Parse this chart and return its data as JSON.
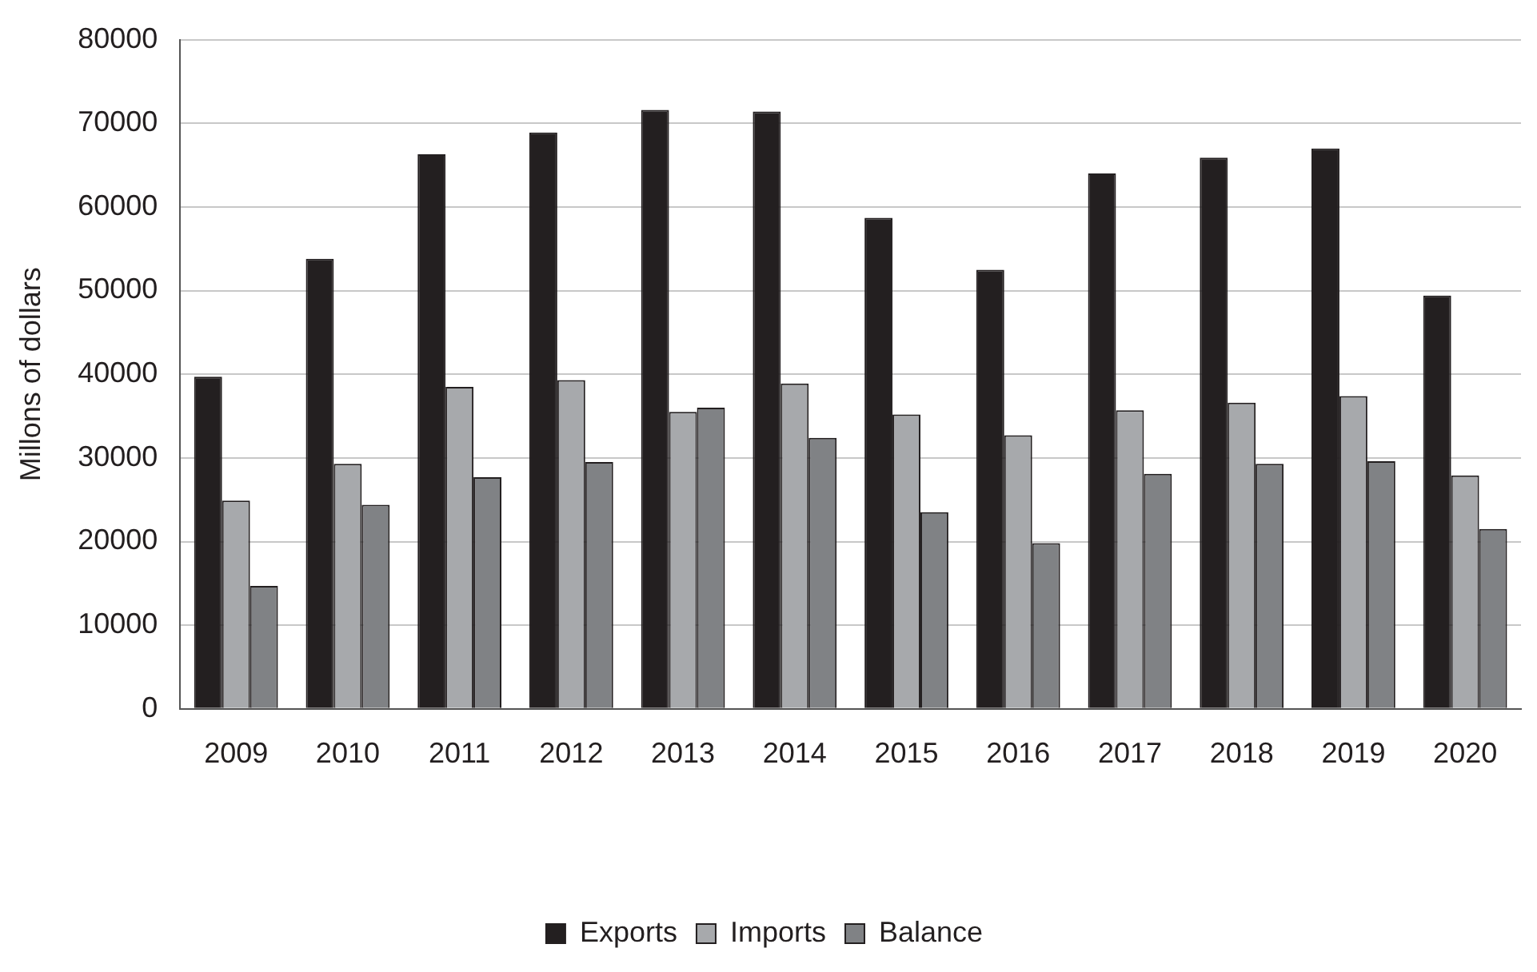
{
  "chart_data": {
    "type": "bar",
    "ylabel": "Millons of dollars",
    "categories": [
      "2009",
      "2010",
      "2011",
      "2012",
      "2013",
      "2014",
      "2015",
      "2016",
      "2017",
      "2018",
      "2019",
      "2020"
    ],
    "series": [
      {
        "name": "Exports",
        "color": "#231f20",
        "values": [
          39700,
          53800,
          66300,
          68900,
          71600,
          71400,
          58700,
          52500,
          64000,
          65900,
          67000,
          49400
        ]
      },
      {
        "name": "Imports",
        "color": "#a7a9ac",
        "values": [
          24900,
          29300,
          38500,
          39300,
          35500,
          38900,
          35200,
          32700,
          35700,
          36600,
          37400,
          27900
        ]
      },
      {
        "name": "Balance",
        "color": "#808285",
        "values": [
          14700,
          24400,
          27700,
          29500,
          36000,
          32400,
          23500,
          19800,
          28100,
          29300,
          29600,
          21500
        ]
      }
    ],
    "ylim": [
      0,
      80000
    ],
    "yticks": [
      0,
      10000,
      20000,
      30000,
      40000,
      50000,
      60000,
      70000,
      80000
    ],
    "grid": "y",
    "legend": "bottom"
  }
}
